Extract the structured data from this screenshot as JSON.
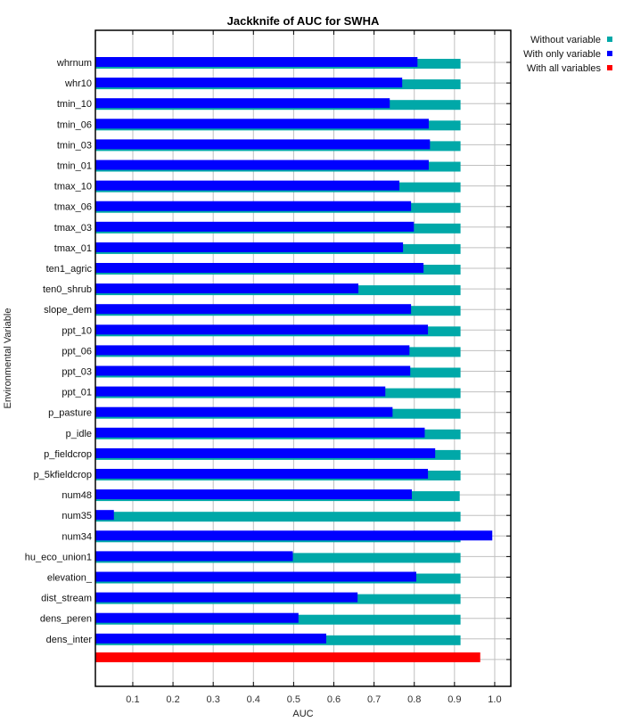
{
  "chart_data": {
    "type": "bar",
    "orientation": "horizontal",
    "title": "Jackknife of AUC for SWHA",
    "xlabel": "AUC",
    "ylabel": "Environmental Variable",
    "xlim": [
      0.007,
      1.04
    ],
    "xticks": [
      0.1,
      0.2,
      0.3,
      0.4,
      0.5,
      0.6,
      0.7,
      0.8,
      0.9,
      1.0
    ],
    "xtick_labels": [
      "0.1",
      "0.2",
      "0.3",
      "0.4",
      "0.5",
      "0.6",
      "0.7",
      "0.8",
      "0.9",
      "1.0"
    ],
    "grid": true,
    "legend_position": "top-right outside",
    "categories": [
      "whrnum",
      "whr10",
      "tmin_10",
      "tmin_06",
      "tmin_03",
      "tmin_01",
      "tmax_10",
      "tmax_06",
      "tmax_03",
      "tmax_01",
      "ten1_agric",
      "ten0_shrub",
      "slope_dem",
      "ppt_10",
      "ppt_06",
      "ppt_03",
      "ppt_01",
      "p_pasture",
      "p_idle",
      "p_fieldcrop",
      "p_5kfieldcrop",
      "num48",
      "num35",
      "num34",
      "hu_eco_union1",
      "elevation_",
      "dist_stream",
      "dens_peren",
      "dens_inter"
    ],
    "series": [
      {
        "name": "Without variable",
        "color": "#00a8a8",
        "values": [
          0.915,
          0.915,
          0.915,
          0.915,
          0.915,
          0.915,
          0.915,
          0.915,
          0.915,
          0.915,
          0.915,
          0.915,
          0.915,
          0.915,
          0.915,
          0.915,
          0.915,
          0.915,
          0.915,
          0.915,
          0.915,
          0.913,
          0.915,
          0.915,
          0.915,
          0.915,
          0.915,
          0.915,
          0.915
        ]
      },
      {
        "name": "With only variable",
        "color": "#0000ff",
        "values": [
          0.808,
          0.77,
          0.739,
          0.836,
          0.839,
          0.836,
          0.763,
          0.792,
          0.799,
          0.772,
          0.823,
          0.661,
          0.792,
          0.834,
          0.788,
          0.79,
          0.728,
          0.746,
          0.826,
          0.852,
          0.834,
          0.794,
          0.053,
          0.994,
          0.498,
          0.805,
          0.659,
          0.512,
          0.581
        ]
      },
      {
        "name": "With all variables",
        "color": "#ff0000",
        "values": [
          0.964
        ]
      }
    ]
  }
}
